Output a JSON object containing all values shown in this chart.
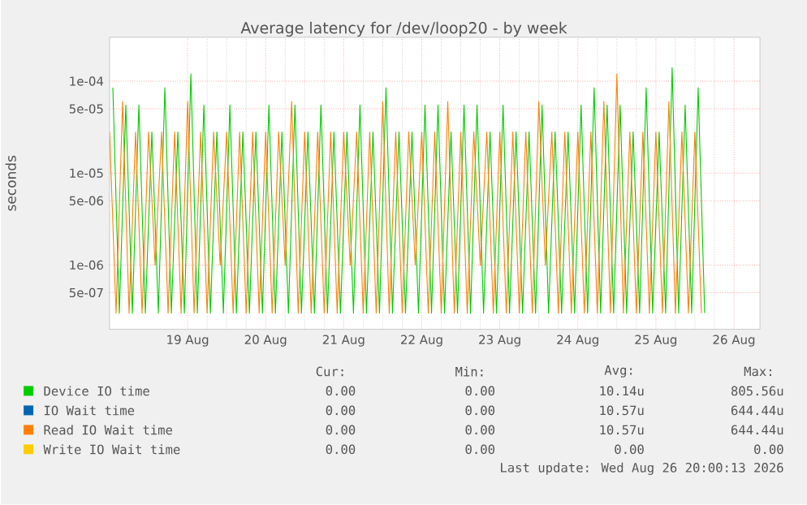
{
  "chart_data": {
    "type": "line",
    "title": "Average latency for /dev/loop20 - by week",
    "ylabel": "seconds",
    "log": true,
    "grid": true,
    "legend": "bottom",
    "xlim": [
      "2026-08-18T00:00",
      "2026-08-26T08:00"
    ],
    "xticks": [
      {
        "value": "2026-08-19",
        "label": "19 Aug"
      },
      {
        "value": "2026-08-20",
        "label": "20 Aug"
      },
      {
        "value": "2026-08-21",
        "label": "21 Aug"
      },
      {
        "value": "2026-08-22",
        "label": "22 Aug"
      },
      {
        "value": "2026-08-23",
        "label": "23 Aug"
      },
      {
        "value": "2026-08-24",
        "label": "24 Aug"
      },
      {
        "value": "2026-08-25",
        "label": "25 Aug"
      },
      {
        "value": "2026-08-26",
        "label": "26 Aug"
      }
    ],
    "ylim": [
      2e-07,
      0.0003
    ],
    "yticks": [
      {
        "value": 5e-07,
        "label": "5e-07"
      },
      {
        "value": 1e-06,
        "label": "1e-06"
      },
      {
        "value": 5e-06,
        "label": "5e-06"
      },
      {
        "value": 1e-05,
        "label": "1e-05"
      },
      {
        "value": 5e-05,
        "label": "5e-05"
      },
      {
        "value": 0.0001,
        "label": "1e-04"
      }
    ],
    "series": [
      {
        "name": "Device IO time",
        "color": "#00cc00",
        "x": [
          "2026-08-18T01:00",
          "2026-08-18T03:00",
          "2026-08-18T05:00",
          "2026-08-18T07:00",
          "2026-08-18T09:00",
          "2026-08-18T11:00",
          "2026-08-18T13:00",
          "2026-08-18T15:00",
          "2026-08-18T17:00",
          "2026-08-18T19:00",
          "2026-08-18T21:00",
          "2026-08-18T23:00",
          "2026-08-19T01:00",
          "2026-08-19T03:00",
          "2026-08-19T05:00",
          "2026-08-19T07:00",
          "2026-08-19T09:00",
          "2026-08-19T11:00",
          "2026-08-19T13:00",
          "2026-08-19T15:00",
          "2026-08-19T17:00",
          "2026-08-19T19:00",
          "2026-08-19T21:00",
          "2026-08-19T23:00",
          "2026-08-20T01:00",
          "2026-08-20T03:00",
          "2026-08-20T05:00",
          "2026-08-20T07:00",
          "2026-08-20T09:00",
          "2026-08-20T11:00",
          "2026-08-20T13:00",
          "2026-08-20T15:00",
          "2026-08-20T17:00",
          "2026-08-20T19:00",
          "2026-08-20T21:00",
          "2026-08-20T23:00",
          "2026-08-21T01:00",
          "2026-08-21T03:00",
          "2026-08-21T05:00",
          "2026-08-21T07:00",
          "2026-08-21T09:00",
          "2026-08-21T11:00",
          "2026-08-21T13:00",
          "2026-08-21T15:00",
          "2026-08-21T17:00",
          "2026-08-21T19:00",
          "2026-08-21T21:00",
          "2026-08-21T23:00",
          "2026-08-22T01:00",
          "2026-08-22T03:00",
          "2026-08-22T05:00",
          "2026-08-22T07:00",
          "2026-08-22T09:00",
          "2026-08-22T11:00",
          "2026-08-22T13:00",
          "2026-08-22T15:00",
          "2026-08-22T17:00",
          "2026-08-22T19:00",
          "2026-08-22T21:00",
          "2026-08-22T23:00",
          "2026-08-23T01:00",
          "2026-08-23T03:00",
          "2026-08-23T05:00",
          "2026-08-23T07:00",
          "2026-08-23T09:00",
          "2026-08-23T11:00",
          "2026-08-23T13:00",
          "2026-08-23T15:00",
          "2026-08-23T17:00",
          "2026-08-23T19:00",
          "2026-08-23T21:00",
          "2026-08-23T23:00",
          "2026-08-24T01:00",
          "2026-08-24T03:00",
          "2026-08-24T05:00",
          "2026-08-24T07:00",
          "2026-08-24T09:00",
          "2026-08-24T11:00",
          "2026-08-24T13:00",
          "2026-08-24T15:00",
          "2026-08-24T17:00",
          "2026-08-24T19:00",
          "2026-08-24T21:00",
          "2026-08-24T23:00",
          "2026-08-25T01:00",
          "2026-08-25T03:00",
          "2026-08-25T05:00",
          "2026-08-25T07:00",
          "2026-08-25T09:00",
          "2026-08-25T11:00",
          "2026-08-25T13:00",
          "2026-08-25T15:00"
        ],
        "values": [
          8.5e-05,
          3e-07,
          5.5e-05,
          3e-07,
          5.5e-05,
          3e-07,
          2.8e-05,
          3e-07,
          8.5e-05,
          3e-07,
          2.8e-05,
          3e-07,
          0.00012,
          3e-07,
          5.5e-05,
          3e-07,
          2.8e-05,
          3e-07,
          5.5e-05,
          3e-07,
          2.8e-05,
          3e-07,
          2.8e-05,
          3e-07,
          5.5e-05,
          3e-07,
          2.8e-05,
          3e-07,
          5.5e-05,
          3e-07,
          2.8e-05,
          3e-07,
          5.5e-05,
          3e-07,
          2.8e-05,
          3e-07,
          2.8e-05,
          3e-07,
          5.5e-05,
          3e-07,
          2.8e-05,
          3e-07,
          8.5e-05,
          3e-07,
          2.8e-05,
          3e-07,
          2.8e-05,
          3e-07,
          5.5e-05,
          3e-07,
          5.5e-05,
          3e-07,
          2.8e-05,
          3e-07,
          5.5e-05,
          3e-07,
          5.5e-05,
          3e-07,
          2.8e-05,
          3e-07,
          5.5e-05,
          3e-07,
          2.8e-05,
          3e-07,
          2.8e-05,
          3e-07,
          5.5e-05,
          3e-07,
          2.8e-05,
          3e-07,
          2.8e-05,
          3e-07,
          5.5e-05,
          3e-07,
          8.5e-05,
          3e-07,
          5.5e-05,
          3e-07,
          5.5e-05,
          3e-07,
          2.8e-05,
          3e-07,
          8.5e-05,
          3e-07,
          2.8e-05,
          3e-07,
          0.00014,
          3e-07,
          5.5e-05,
          3e-07,
          8.5e-05,
          3e-07
        ]
      },
      {
        "name": "IO Wait time",
        "color": "#0066b3",
        "values": [
          null
        ]
      },
      {
        "name": "Read IO Wait time",
        "color": "#ff8000",
        "x": [
          "2026-08-18T00:00",
          "2026-08-18T02:00",
          "2026-08-18T04:00",
          "2026-08-18T06:00",
          "2026-08-18T08:00",
          "2026-08-18T10:00",
          "2026-08-18T12:00",
          "2026-08-18T14:00",
          "2026-08-18T16:00",
          "2026-08-18T18:00",
          "2026-08-18T20:00",
          "2026-08-18T22:00",
          "2026-08-19T00:00",
          "2026-08-19T02:00",
          "2026-08-19T04:00",
          "2026-08-19T06:00",
          "2026-08-19T08:00",
          "2026-08-19T10:00",
          "2026-08-19T12:00",
          "2026-08-19T14:00",
          "2026-08-19T16:00",
          "2026-08-19T18:00",
          "2026-08-19T20:00",
          "2026-08-19T22:00",
          "2026-08-20T00:00",
          "2026-08-20T02:00",
          "2026-08-20T04:00",
          "2026-08-20T06:00",
          "2026-08-20T08:00",
          "2026-08-20T10:00",
          "2026-08-20T12:00",
          "2026-08-20T14:00",
          "2026-08-20T16:00",
          "2026-08-20T18:00",
          "2026-08-20T20:00",
          "2026-08-20T22:00",
          "2026-08-21T00:00",
          "2026-08-21T02:00",
          "2026-08-21T04:00",
          "2026-08-21T06:00",
          "2026-08-21T08:00",
          "2026-08-21T10:00",
          "2026-08-21T12:00",
          "2026-08-21T14:00",
          "2026-08-21T16:00",
          "2026-08-21T18:00",
          "2026-08-21T20:00",
          "2026-08-21T22:00",
          "2026-08-22T00:00",
          "2026-08-22T02:00",
          "2026-08-22T04:00",
          "2026-08-22T06:00",
          "2026-08-22T08:00",
          "2026-08-22T10:00",
          "2026-08-22T12:00",
          "2026-08-22T14:00",
          "2026-08-22T16:00",
          "2026-08-22T18:00",
          "2026-08-22T20:00",
          "2026-08-22T22:00",
          "2026-08-23T00:00",
          "2026-08-23T02:00",
          "2026-08-23T04:00",
          "2026-08-23T06:00",
          "2026-08-23T08:00",
          "2026-08-23T10:00",
          "2026-08-23T12:00",
          "2026-08-23T14:00",
          "2026-08-23T16:00",
          "2026-08-23T18:00",
          "2026-08-23T20:00",
          "2026-08-23T22:00",
          "2026-08-24T00:00",
          "2026-08-24T02:00",
          "2026-08-24T04:00",
          "2026-08-24T06:00",
          "2026-08-24T08:00",
          "2026-08-24T10:00",
          "2026-08-24T12:00",
          "2026-08-24T14:00",
          "2026-08-24T16:00",
          "2026-08-24T18:00",
          "2026-08-24T20:00",
          "2026-08-24T22:00",
          "2026-08-25T00:00",
          "2026-08-25T02:00",
          "2026-08-25T04:00",
          "2026-08-25T06:00",
          "2026-08-25T08:00",
          "2026-08-25T10:00",
          "2026-08-25T12:00",
          "2026-08-25T14:00"
        ],
        "values": [
          2.8e-05,
          3e-07,
          6e-05,
          3e-07,
          2.8e-05,
          3e-07,
          2.8e-05,
          1e-06,
          2.8e-05,
          3e-07,
          2.8e-05,
          3e-07,
          6e-05,
          3e-07,
          2.8e-05,
          3e-07,
          2.8e-05,
          1e-06,
          2.8e-05,
          3e-07,
          2.8e-05,
          3e-07,
          2.8e-05,
          3e-07,
          2.8e-05,
          3e-07,
          2.8e-05,
          1e-06,
          6e-05,
          3e-07,
          2.8e-05,
          3e-07,
          2.8e-05,
          3e-07,
          2.8e-05,
          3e-07,
          2.8e-05,
          1e-06,
          2.8e-05,
          3e-07,
          2.8e-05,
          3e-07,
          6e-05,
          3e-07,
          2.8e-05,
          3e-07,
          2.8e-05,
          1e-06,
          2.8e-05,
          3e-07,
          2.8e-05,
          3e-07,
          6e-05,
          3e-07,
          2.8e-05,
          3e-07,
          2.8e-05,
          1e-06,
          2.8e-05,
          3e-07,
          2.8e-05,
          3e-07,
          2.8e-05,
          3e-07,
          2.8e-05,
          3e-07,
          6e-05,
          1e-06,
          2.8e-05,
          3e-07,
          2.8e-05,
          3e-07,
          2.8e-05,
          3e-07,
          2.8e-05,
          3e-07,
          6e-05,
          3e-07,
          0.00012,
          3e-07,
          2.8e-05,
          3e-07,
          2.8e-05,
          3e-07,
          2.8e-05,
          3e-07,
          6e-05,
          3e-07,
          2.8e-05,
          3e-07,
          2.8e-05,
          3e-07
        ]
      },
      {
        "name": "Write IO Wait time",
        "color": "#ffcc00",
        "values": [
          null
        ]
      }
    ],
    "annotations": [
      "Cur:",
      "Min:",
      "Avg:",
      "Max:",
      "0.00",
      "0.00",
      "10.14u",
      "805.56u",
      "0.00",
      "0.00",
      "10.57u",
      "644.44u",
      "0.00",
      "0.00",
      "10.57u",
      "644.44u",
      "0.00",
      "0.00",
      "0.00",
      "0.00",
      "Last update: Wed Aug 26 20:00:13 2026"
    ]
  }
}
